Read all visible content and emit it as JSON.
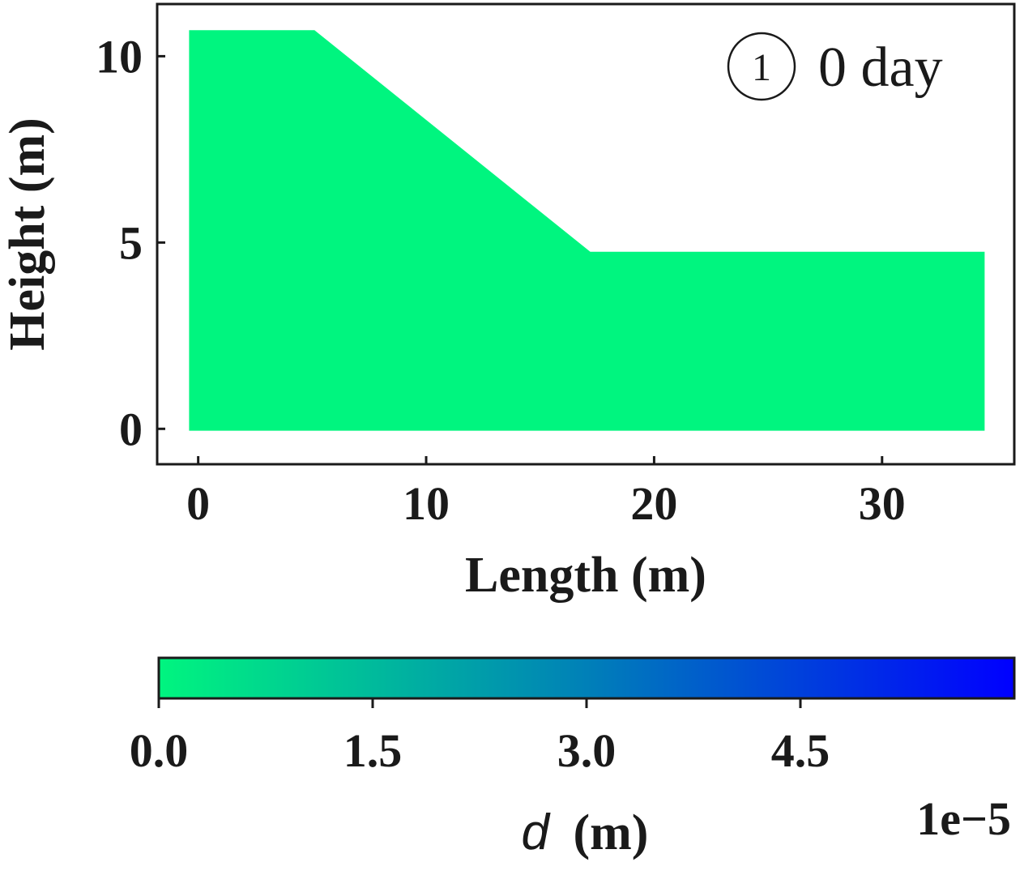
{
  "chart_data": [
    {
      "type": "heatmap",
      "title": "",
      "xlabel": "Length (m)",
      "ylabel": "Height (m)",
      "xlim": [
        -1.8,
        35.8
      ],
      "ylim": [
        -0.95,
        11.4
      ],
      "x_ticks": [
        0,
        10,
        20,
        30
      ],
      "y_ticks": [
        0,
        5,
        10
      ],
      "x_tick_labels": [
        "0",
        "10",
        "20",
        "30"
      ],
      "y_tick_labels": [
        "0",
        "5",
        "10"
      ],
      "grid": false,
      "domain_outline": [
        [
          -0.4,
          -0.05
        ],
        [
          -0.4,
          10.7
        ],
        [
          5.1,
          10.7
        ],
        [
          17.2,
          4.75
        ],
        [
          34.5,
          4.75
        ],
        [
          34.5,
          -0.05
        ]
      ],
      "field_value_uniform": 0.0,
      "fill_color": "#00f57f",
      "annotation": {
        "marker": "①",
        "text": "0 day",
        "position": "top-right"
      }
    },
    {
      "type": "colorbar",
      "label_var": "d",
      "label_unit": "(m)",
      "range": [
        0.0,
        6.0
      ],
      "scale_text": "1e−5",
      "ticks": [
        0.0,
        1.5,
        3.0,
        4.5
      ],
      "tick_labels": [
        "0.0",
        "1.5",
        "3.0",
        "4.5"
      ],
      "color_start": "#00f57f",
      "color_mid": "#0080b8",
      "color_end": "#0000ff"
    }
  ]
}
